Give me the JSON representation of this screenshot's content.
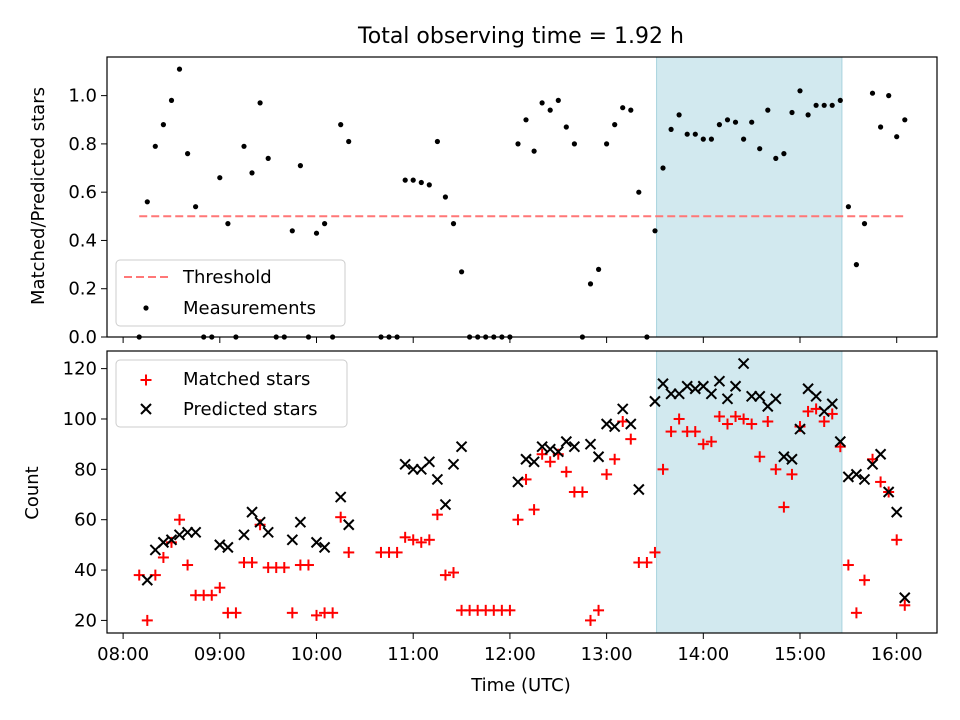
{
  "title": "Total observing time = 1.92 h",
  "highlight": {
    "start": "13:31",
    "end": "15:26",
    "color": "#d2e9ef",
    "edge": "#a8d3de"
  },
  "colors": {
    "threshold": "#ff7777",
    "measurements": "#000000",
    "matched": "#ff0000",
    "predicted": "#000000"
  },
  "chart_data": [
    {
      "type": "scatter",
      "ylabel": "Matched/Predicted stars",
      "ylim": [
        0,
        1.16
      ],
      "yticks": [
        "0.0",
        "0.2",
        "0.4",
        "0.6",
        "0.8",
        "1.0"
      ],
      "legend_position": "lower-left",
      "threshold": {
        "name": "Threshold",
        "value": 0.5,
        "x_range": [
          "08:10",
          "16:04"
        ]
      },
      "series": [
        {
          "name": "Measurements",
          "points": [
            [
              "08:10",
              0.0
            ],
            [
              "08:15",
              0.56
            ],
            [
              "08:20",
              0.79
            ],
            [
              "08:25",
              0.88
            ],
            [
              "08:30",
              0.98
            ],
            [
              "08:35",
              1.11
            ],
            [
              "08:40",
              0.76
            ],
            [
              "08:45",
              0.54
            ],
            [
              "08:50",
              0.0
            ],
            [
              "08:55",
              0.0
            ],
            [
              "09:00",
              0.66
            ],
            [
              "09:05",
              0.47
            ],
            [
              "09:10",
              0.0
            ],
            [
              "09:15",
              0.79
            ],
            [
              "09:20",
              0.68
            ],
            [
              "09:25",
              0.97
            ],
            [
              "09:30",
              0.74
            ],
            [
              "09:35",
              0.0
            ],
            [
              "09:40",
              0.0
            ],
            [
              "09:45",
              0.44
            ],
            [
              "09:50",
              0.71
            ],
            [
              "09:55",
              0.0
            ],
            [
              "10:00",
              0.43
            ],
            [
              "10:05",
              0.47
            ],
            [
              "10:10",
              0.0
            ],
            [
              "10:15",
              0.88
            ],
            [
              "10:20",
              0.81
            ],
            [
              "10:40",
              0.0
            ],
            [
              "10:45",
              0.0
            ],
            [
              "10:50",
              0.0
            ],
            [
              "10:55",
              0.65
            ],
            [
              "11:00",
              0.65
            ],
            [
              "11:05",
              0.64
            ],
            [
              "11:10",
              0.63
            ],
            [
              "11:15",
              0.81
            ],
            [
              "11:20",
              0.58
            ],
            [
              "11:25",
              0.47
            ],
            [
              "11:30",
              0.27
            ],
            [
              "11:35",
              0.0
            ],
            [
              "11:40",
              0.0
            ],
            [
              "11:45",
              0.0
            ],
            [
              "11:50",
              0.0
            ],
            [
              "11:55",
              0.0
            ],
            [
              "12:00",
              0.0
            ],
            [
              "12:05",
              0.8
            ],
            [
              "12:10",
              0.9
            ],
            [
              "12:15",
              0.77
            ],
            [
              "12:20",
              0.97
            ],
            [
              "12:25",
              0.94
            ],
            [
              "12:30",
              0.98
            ],
            [
              "12:35",
              0.87
            ],
            [
              "12:40",
              0.8
            ],
            [
              "12:45",
              0.0
            ],
            [
              "12:50",
              0.22
            ],
            [
              "12:55",
              0.28
            ],
            [
              "13:00",
              0.8
            ],
            [
              "13:05",
              0.88
            ],
            [
              "13:10",
              0.95
            ],
            [
              "13:15",
              0.94
            ],
            [
              "13:20",
              0.6
            ],
            [
              "13:25",
              0.0
            ],
            [
              "13:30",
              0.44
            ],
            [
              "13:35",
              0.7
            ],
            [
              "13:40",
              0.86
            ],
            [
              "13:45",
              0.92
            ],
            [
              "13:50",
              0.84
            ],
            [
              "13:55",
              0.84
            ],
            [
              "14:00",
              0.82
            ],
            [
              "14:05",
              0.82
            ],
            [
              "14:10",
              0.88
            ],
            [
              "14:15",
              0.9
            ],
            [
              "14:20",
              0.89
            ],
            [
              "14:25",
              0.82
            ],
            [
              "14:30",
              0.89
            ],
            [
              "14:35",
              0.78
            ],
            [
              "14:40",
              0.94
            ],
            [
              "14:45",
              0.74
            ],
            [
              "14:50",
              0.76
            ],
            [
              "14:55",
              0.93
            ],
            [
              "15:00",
              1.02
            ],
            [
              "15:05",
              0.92
            ],
            [
              "15:10",
              0.96
            ],
            [
              "15:15",
              0.96
            ],
            [
              "15:20",
              0.96
            ],
            [
              "15:25",
              0.98
            ],
            [
              "15:30",
              0.54
            ],
            [
              "15:35",
              0.3
            ],
            [
              "15:40",
              0.47
            ],
            [
              "15:45",
              1.01
            ],
            [
              "15:50",
              0.87
            ],
            [
              "15:55",
              1.0
            ],
            [
              "16:00",
              0.83
            ],
            [
              "16:05",
              0.9
            ]
          ]
        }
      ]
    },
    {
      "type": "scatter",
      "title": "",
      "xlabel": "Time (UTC)",
      "ylabel": "Count",
      "xlim": [
        "07:50",
        "16:25"
      ],
      "xticks": [
        "08:00",
        "09:00",
        "10:00",
        "11:00",
        "12:00",
        "13:00",
        "14:00",
        "15:00",
        "16:00"
      ],
      "ylim": [
        15,
        127
      ],
      "yticks": [
        "20",
        "40",
        "60",
        "80",
        "100",
        "120"
      ],
      "legend_position": "upper-left",
      "series": [
        {
          "name": "Matched stars",
          "marker": "+",
          "points": [
            [
              "08:10",
              38
            ],
            [
              "08:15",
              20
            ],
            [
              "08:20",
              38
            ],
            [
              "08:25",
              45
            ],
            [
              "08:30",
              51
            ],
            [
              "08:35",
              60
            ],
            [
              "08:40",
              42
            ],
            [
              "08:45",
              30
            ],
            [
              "08:50",
              30
            ],
            [
              "08:55",
              30
            ],
            [
              "09:00",
              33
            ],
            [
              "09:05",
              23
            ],
            [
              "09:10",
              23
            ],
            [
              "09:15",
              43
            ],
            [
              "09:20",
              43
            ],
            [
              "09:25",
              58
            ],
            [
              "09:30",
              41
            ],
            [
              "09:35",
              41
            ],
            [
              "09:40",
              41
            ],
            [
              "09:45",
              23
            ],
            [
              "09:50",
              42
            ],
            [
              "09:55",
              42
            ],
            [
              "10:00",
              22
            ],
            [
              "10:05",
              23
            ],
            [
              "10:10",
              23
            ],
            [
              "10:15",
              61
            ],
            [
              "10:20",
              47
            ],
            [
              "10:40",
              47
            ],
            [
              "10:45",
              47
            ],
            [
              "10:50",
              47
            ],
            [
              "10:55",
              53
            ],
            [
              "11:00",
              52
            ],
            [
              "11:05",
              51
            ],
            [
              "11:10",
              52
            ],
            [
              "11:15",
              62
            ],
            [
              "11:20",
              38
            ],
            [
              "11:25",
              39
            ],
            [
              "11:30",
              24
            ],
            [
              "11:35",
              24
            ],
            [
              "11:40",
              24
            ],
            [
              "11:45",
              24
            ],
            [
              "11:50",
              24
            ],
            [
              "11:55",
              24
            ],
            [
              "12:00",
              24
            ],
            [
              "12:05",
              60
            ],
            [
              "12:10",
              76
            ],
            [
              "12:15",
              64
            ],
            [
              "12:20",
              86
            ],
            [
              "12:25",
              83
            ],
            [
              "12:30",
              86
            ],
            [
              "12:35",
              79
            ],
            [
              "12:40",
              71
            ],
            [
              "12:45",
              71
            ],
            [
              "12:50",
              20
            ],
            [
              "12:55",
              24
            ],
            [
              "13:00",
              78
            ],
            [
              "13:05",
              84
            ],
            [
              "13:10",
              99
            ],
            [
              "13:15",
              92
            ],
            [
              "13:20",
              43
            ],
            [
              "13:25",
              43
            ],
            [
              "13:30",
              47
            ],
            [
              "13:35",
              80
            ],
            [
              "13:40",
              95
            ],
            [
              "13:45",
              100
            ],
            [
              "13:50",
              95
            ],
            [
              "13:55",
              95
            ],
            [
              "14:00",
              90
            ],
            [
              "14:05",
              91
            ],
            [
              "14:10",
              101
            ],
            [
              "14:15",
              98
            ],
            [
              "14:20",
              101
            ],
            [
              "14:25",
              100
            ],
            [
              "14:30",
              98
            ],
            [
              "14:35",
              85
            ],
            [
              "14:40",
              99
            ],
            [
              "14:45",
              80
            ],
            [
              "14:50",
              65
            ],
            [
              "14:55",
              78
            ],
            [
              "15:00",
              97
            ],
            [
              "15:05",
              103
            ],
            [
              "15:10",
              104
            ],
            [
              "15:15",
              99
            ],
            [
              "15:20",
              102
            ],
            [
              "15:25",
              89
            ],
            [
              "15:30",
              42
            ],
            [
              "15:35",
              23
            ],
            [
              "15:40",
              36
            ],
            [
              "15:45",
              84
            ],
            [
              "15:50",
              75
            ],
            [
              "15:55",
              71
            ],
            [
              "16:00",
              52
            ],
            [
              "16:05",
              26
            ]
          ]
        },
        {
          "name": "Predicted stars",
          "marker": "x",
          "points": [
            [
              "08:15",
              36
            ],
            [
              "08:20",
              48
            ],
            [
              "08:25",
              51
            ],
            [
              "08:30",
              52
            ],
            [
              "08:35",
              54
            ],
            [
              "08:40",
              55
            ],
            [
              "08:45",
              55
            ],
            [
              "09:00",
              50
            ],
            [
              "09:05",
              49
            ],
            [
              "09:15",
              54
            ],
            [
              "09:20",
              63
            ],
            [
              "09:25",
              59
            ],
            [
              "09:30",
              55
            ],
            [
              "09:45",
              52
            ],
            [
              "09:50",
              59
            ],
            [
              "10:00",
              51
            ],
            [
              "10:05",
              49
            ],
            [
              "10:15",
              69
            ],
            [
              "10:20",
              58
            ],
            [
              "10:55",
              82
            ],
            [
              "11:00",
              80
            ],
            [
              "11:05",
              80
            ],
            [
              "11:10",
              83
            ],
            [
              "11:15",
              76
            ],
            [
              "11:20",
              66
            ],
            [
              "11:25",
              82
            ],
            [
              "11:30",
              89
            ],
            [
              "12:05",
              75
            ],
            [
              "12:10",
              84
            ],
            [
              "12:15",
              83
            ],
            [
              "12:20",
              89
            ],
            [
              "12:25",
              88
            ],
            [
              "12:30",
              87
            ],
            [
              "12:35",
              91
            ],
            [
              "12:40",
              89
            ],
            [
              "12:50",
              90
            ],
            [
              "12:55",
              85
            ],
            [
              "13:00",
              98
            ],
            [
              "13:05",
              97
            ],
            [
              "13:10",
              104
            ],
            [
              "13:15",
              98
            ],
            [
              "13:20",
              72
            ],
            [
              "13:30",
              107
            ],
            [
              "13:35",
              114
            ],
            [
              "13:40",
              110
            ],
            [
              "13:45",
              110
            ],
            [
              "13:50",
              113
            ],
            [
              "13:55",
              112
            ],
            [
              "14:00",
              113
            ],
            [
              "14:05",
              110
            ],
            [
              "14:10",
              115
            ],
            [
              "14:15",
              108
            ],
            [
              "14:20",
              113
            ],
            [
              "14:25",
              122
            ],
            [
              "14:30",
              109
            ],
            [
              "14:35",
              109
            ],
            [
              "14:40",
              105
            ],
            [
              "14:45",
              108
            ],
            [
              "14:50",
              85
            ],
            [
              "14:55",
              84
            ],
            [
              "15:00",
              96
            ],
            [
              "15:05",
              112
            ],
            [
              "15:10",
              109
            ],
            [
              "15:15",
              103
            ],
            [
              "15:20",
              106
            ],
            [
              "15:25",
              91
            ],
            [
              "15:30",
              77
            ],
            [
              "15:35",
              78
            ],
            [
              "15:40",
              76
            ],
            [
              "15:45",
              82
            ],
            [
              "15:50",
              86
            ],
            [
              "15:55",
              71
            ],
            [
              "16:00",
              63
            ],
            [
              "16:05",
              29
            ]
          ]
        }
      ]
    }
  ]
}
